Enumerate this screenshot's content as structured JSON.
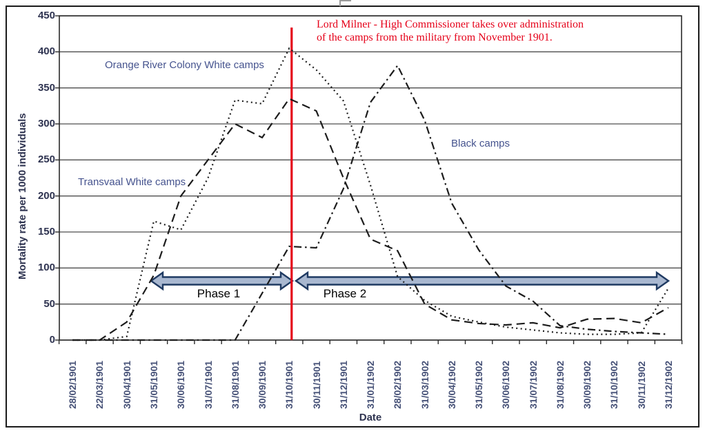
{
  "figure": {
    "y_axis_title": "Mortality rate per 1000 individuals",
    "x_axis_title": "Date",
    "annotation": {
      "line1": "Lord Milner - High Commissioner takes over administration",
      "line2": "of the camps from the military from November 1901.",
      "color": "#e50019"
    },
    "phase1_label": "Phase 1",
    "phase2_label": "Phase 2",
    "series_labels": {
      "orange_river": "Orange River Colony White camps",
      "transvaal": "Transvaal White camps",
      "black": "Black camps"
    },
    "colors": {
      "accent_red": "#e50019",
      "arrow_fill": "#a9b8d0",
      "arrow_stroke": "#1f3a62",
      "label_blue": "#45538e",
      "line_black": "#1c1c1c",
      "grid_gray": "#4d4d4d"
    }
  },
  "chart_data": {
    "type": "line",
    "title": "",
    "xlabel": "Date",
    "ylabel": "Mortality rate per 1000 individuals",
    "ylim": [
      0,
      450
    ],
    "y_ticks": [
      450,
      400,
      350,
      300,
      250,
      200,
      150,
      100,
      50,
      0
    ],
    "grid": "horizontal",
    "legend_position": "inline-labels",
    "x": [
      "28/02/1901",
      "22/03/1901",
      "30/04/1901",
      "31/05/1901",
      "30/06/1901",
      "31/07/1901",
      "31/08/1901",
      "30/09/1901",
      "31/10/1901",
      "30/11/1901",
      "31/12/1901",
      "31/01/1902",
      "28/02/1902",
      "31/03/1902",
      "30/04/1902",
      "31/05/1902",
      "30/06/1902",
      "31/07/1902",
      "31/08/1902",
      "30/09/1902",
      "31/10/1902",
      "30/11/1902",
      "31/12/1902"
    ],
    "series": [
      {
        "name": "Orange River Colony White camps",
        "style": "dotted",
        "values": [
          0,
          0,
          5,
          165,
          153,
          225,
          333,
          328,
          405,
          375,
          332,
          215,
          88,
          55,
          33,
          25,
          18,
          14,
          10,
          8,
          8,
          10,
          72
        ]
      },
      {
        "name": "Transvaal White camps",
        "style": "dashed",
        "values": [
          0,
          0,
          25,
          90,
          200,
          250,
          300,
          281,
          335,
          318,
          225,
          140,
          124,
          50,
          28,
          23,
          21,
          24,
          17,
          29,
          30,
          24,
          45
        ]
      },
      {
        "name": "Black camps",
        "style": "dash-dot",
        "values": [
          0,
          0,
          0,
          0,
          0,
          0,
          0,
          65,
          130,
          128,
          210,
          330,
          381,
          305,
          190,
          125,
          75,
          54,
          20,
          15,
          12,
          10,
          8
        ]
      }
    ],
    "annotations": [
      {
        "type": "vline",
        "x": "31/10/1901",
        "color": "#e50019",
        "text": "Lord Milner - High Commissioner takes over administration of the camps from the military from November 1901."
      },
      {
        "type": "range-arrow",
        "label": "Phase 1",
        "from": "31/05/1901",
        "to": "31/10/1901",
        "y": 82
      },
      {
        "type": "range-arrow",
        "label": "Phase 2",
        "from": "31/10/1901",
        "to": "31/12/1902",
        "y": 82
      }
    ]
  }
}
